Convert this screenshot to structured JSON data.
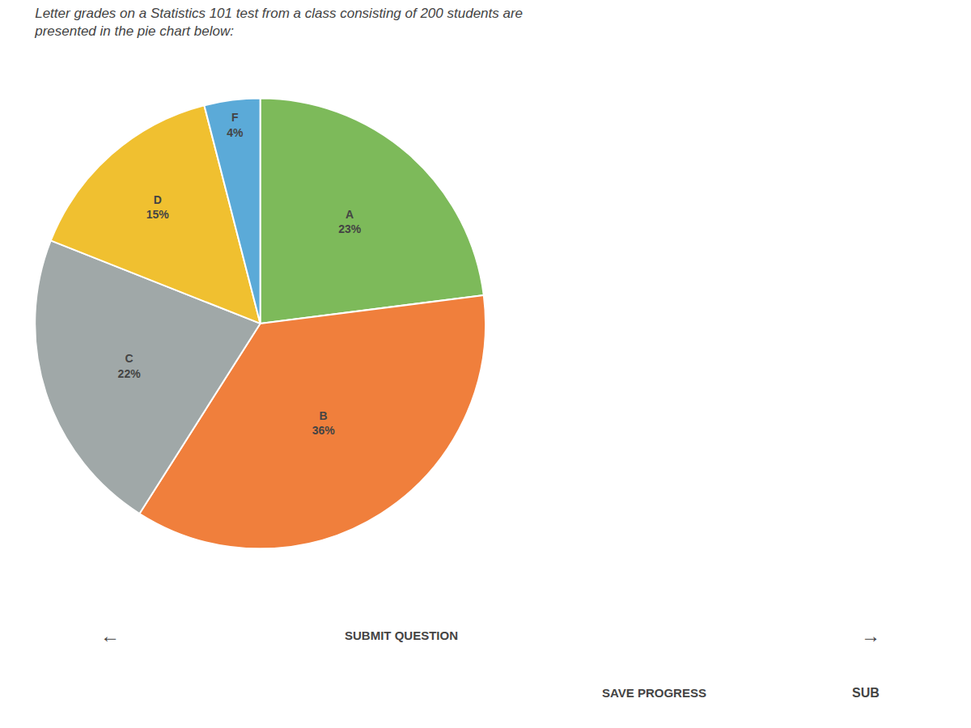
{
  "chart_data": {
    "type": "pie",
    "title": "Letter grades on a Statistics 101 test from a class consisting of 200 students are\npresented in the pie chart below:",
    "categories": [
      "A",
      "B",
      "C",
      "D",
      "F"
    ],
    "values": [
      23,
      36,
      22,
      15,
      4
    ],
    "value_labels": [
      "23%",
      "36%",
      "22%",
      "15%",
      "4%"
    ],
    "data_labels": true,
    "colors": [
      "#7dba5a",
      "#f07f3c",
      "#a0a8a8",
      "#f0c030",
      "#5baad8"
    ],
    "annotations": [
      "←",
      "SUBMIT QUESTION",
      "→",
      "SAVE PROGRESS",
      "SUB"
    ]
  }
}
